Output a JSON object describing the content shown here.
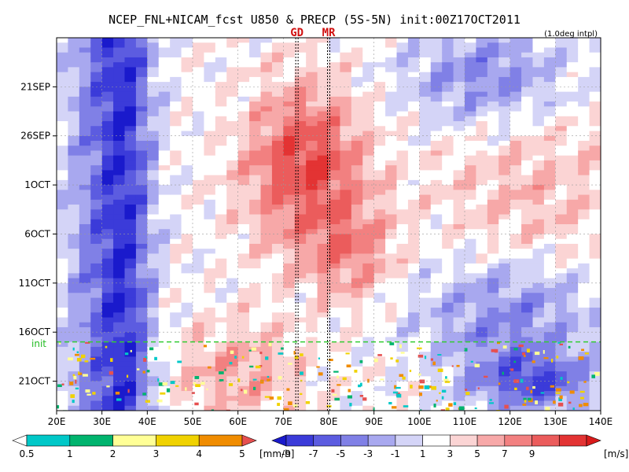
{
  "title": "NCEP_FNL+NICAM_fcst U850 & PRECP (5S-5N) init:00Z17OCT2011",
  "note": "(1.0deg intpl)",
  "init_label": "init",
  "colors": {
    "init_line": "#33cc33",
    "site_lines": "#000000",
    "site_labels": "#d01010"
  },
  "chart_data": {
    "type": "heatmap",
    "title": "NCEP_FNL+NICAM_fcst U850 & PRECP (5S-5N) init:00Z17OCT2011",
    "xlabel": "",
    "ylabel": "",
    "x_ticks": [
      "20E",
      "30E",
      "40E",
      "50E",
      "60E",
      "70E",
      "80E",
      "90E",
      "100E",
      "110E",
      "120E",
      "130E",
      "140E"
    ],
    "x_range": [
      20,
      140
    ],
    "y_ticks": [
      "21SEP",
      "26SEP",
      "1OCT",
      "6OCT",
      "11OCT",
      "16OCT",
      "21OCT"
    ],
    "y_range": [
      "16SEP2011",
      "24OCT2011"
    ],
    "init_time": "17OCT2011",
    "sites": [
      {
        "label": "GD",
        "lon": 73
      },
      {
        "label": "MR",
        "lon": 80
      }
    ],
    "u850_colorbar": {
      "units": "[m/s]",
      "ticks": [
        "-9",
        "-7",
        "-5",
        "-3",
        "-1",
        "1",
        "3",
        "5",
        "7",
        "9"
      ],
      "colors": [
        "#1a1acc",
        "#3b3bd9",
        "#5c5ce0",
        "#8080e6",
        "#a8a8ef",
        "#d4d4f7",
        "#ffffff",
        "#fbd4d4",
        "#f7a8a8",
        "#f28080",
        "#eb5c5c",
        "#e33333",
        "#d91a1a"
      ]
    },
    "precip_colorbar": {
      "units": "[mm/h]",
      "ticks": [
        "0.5",
        "1",
        "2",
        "3",
        "4",
        "5"
      ],
      "colors": [
        "#ffffff",
        "#00c8c8",
        "#00b46e",
        "#ffff96",
        "#f0d200",
        "#f08c00",
        "#e65050"
      ]
    },
    "grid": true
  }
}
